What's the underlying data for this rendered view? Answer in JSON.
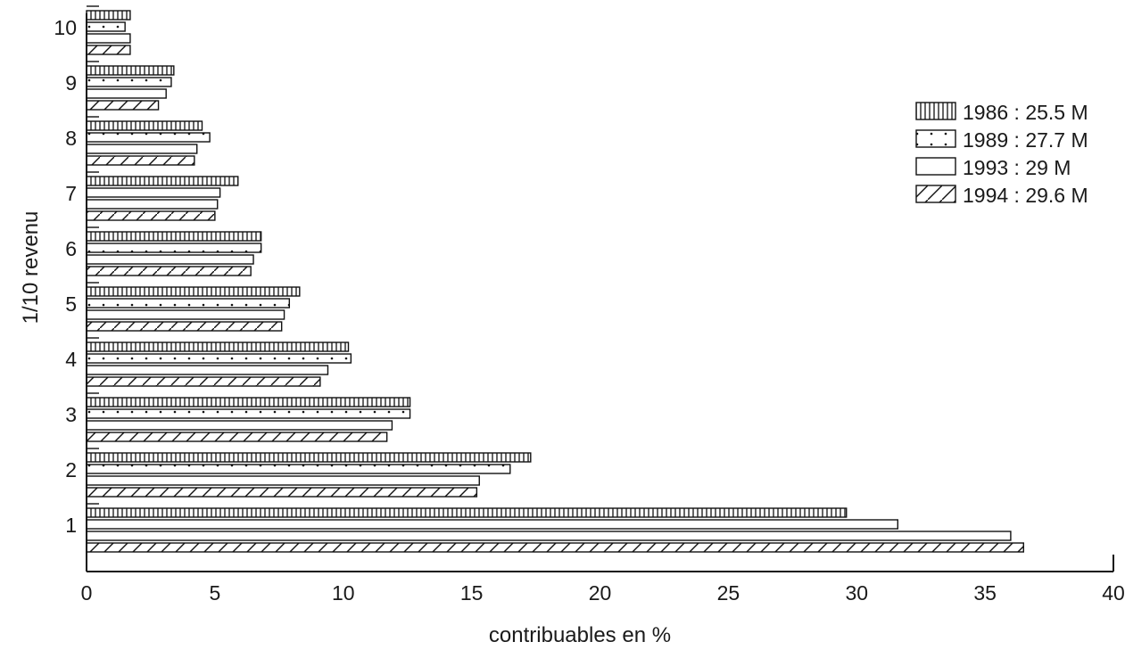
{
  "chart_data": {
    "type": "bar",
    "orientation": "horizontal",
    "categories": [
      "1",
      "2",
      "3",
      "4",
      "5",
      "6",
      "7",
      "8",
      "9",
      "10"
    ],
    "series": [
      {
        "name": "1986 : 25.5 M",
        "pattern": "vertical-lines",
        "values": [
          29.6,
          17.3,
          12.6,
          10.2,
          8.3,
          6.8,
          5.9,
          4.5,
          3.4,
          1.7
        ]
      },
      {
        "name": "1989 : 27.7 M",
        "pattern": "dots",
        "values": [
          31.6,
          16.5,
          12.6,
          10.3,
          7.9,
          6.8,
          5.2,
          4.8,
          3.3,
          1.5
        ]
      },
      {
        "name": "1993 : 29 M",
        "pattern": "empty",
        "values": [
          36.0,
          15.3,
          11.9,
          9.4,
          7.7,
          6.5,
          5.1,
          4.3,
          3.1,
          1.7
        ]
      },
      {
        "name": "1994 : 29.6 M",
        "pattern": "diagonal-hatch",
        "values": [
          36.5,
          15.2,
          11.7,
          9.1,
          7.6,
          6.4,
          5.0,
          4.2,
          2.8,
          1.7
        ]
      }
    ],
    "xlabel": "contribuables en %",
    "ylabel": "1/10 revenu",
    "xlim": [
      0,
      40
    ],
    "xticks": [
      "0",
      "5",
      "10",
      "15",
      "20",
      "25",
      "30",
      "35",
      "40"
    ],
    "legend_position": "top-right",
    "grid": false
  }
}
